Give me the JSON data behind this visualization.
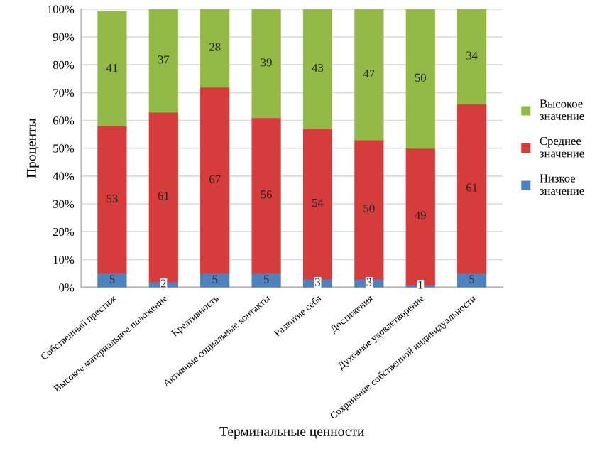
{
  "chart_data": {
    "type": "bar",
    "stacked": true,
    "xlabel": "Терминальные ценности",
    "ylabel": "Проценты",
    "categories": [
      "Собственный престиж",
      "Высокое материальное положение",
      "Креативность",
      "Активные социальные контакты",
      "Развитие себя",
      "Достижения",
      "Духовное удовлетворение",
      "Сохранение собственной индивидуальности"
    ],
    "series": [
      {
        "name": "Низкое значение",
        "color": "#4f81bd",
        "values": [
          5,
          2,
          5,
          5,
          3,
          3,
          1,
          5
        ]
      },
      {
        "name": "Среднее значение",
        "color": "#d63c3c",
        "values": [
          53,
          61,
          67,
          56,
          54,
          50,
          49,
          61
        ]
      },
      {
        "name": "Высокое значение",
        "color": "#93b947",
        "values": [
          41,
          37,
          28,
          39,
          43,
          47,
          50,
          34
        ]
      }
    ],
    "ylim": [
      0,
      100
    ],
    "yticks": [
      {
        "value": 0,
        "label": "0%"
      },
      {
        "value": 10,
        "label": "10%"
      },
      {
        "value": 20,
        "label": "20%"
      },
      {
        "value": 30,
        "label": "30%"
      },
      {
        "value": 40,
        "label": "40%"
      },
      {
        "value": 50,
        "label": "50%"
      },
      {
        "value": 60,
        "label": "60%"
      },
      {
        "value": 70,
        "label": "70%"
      },
      {
        "value": 80,
        "label": "80%"
      },
      {
        "value": 90,
        "label": "90%"
      },
      {
        "value": 100,
        "label": "100%"
      }
    ],
    "grid": "y",
    "legend": "right",
    "data_labels": true
  }
}
